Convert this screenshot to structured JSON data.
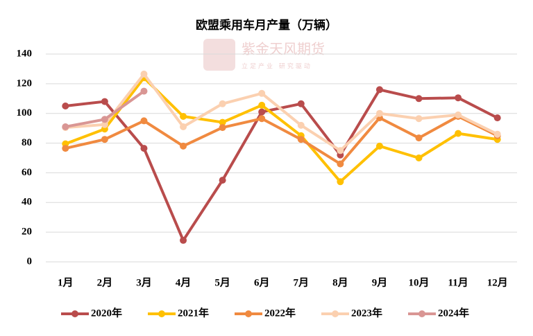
{
  "chart_data": {
    "type": "line",
    "title": "欧盟乘用车月产量（万辆）",
    "watermark": [
      "紫金天风期货",
      "立足产业 研究驱动"
    ],
    "categories": [
      "1月",
      "2月",
      "3月",
      "4月",
      "5月",
      "6月",
      "7月",
      "8月",
      "9月",
      "10月",
      "11月",
      "12月"
    ],
    "series": [
      {
        "name": "2020年",
        "color": "#b94c4c",
        "values": [
          105,
          108,
          76.5,
          14.5,
          55,
          101,
          106.5,
          72,
          116,
          110,
          110.5,
          97
        ]
      },
      {
        "name": "2021年",
        "color": "#ffc000",
        "values": [
          79.5,
          89.5,
          124,
          98,
          94,
          105.5,
          85,
          54,
          78,
          70,
          86.5,
          82.5
        ]
      },
      {
        "name": "2022年",
        "color": "#f08a40",
        "values": [
          76.5,
          82.5,
          95,
          78,
          90.5,
          96.5,
          82.5,
          66,
          97,
          83.5,
          98,
          85
        ]
      },
      {
        "name": "2023年",
        "color": "#fbd0b0",
        "values": [
          90.5,
          92.5,
          126.5,
          91,
          106.5,
          113.5,
          92,
          75,
          100,
          96.5,
          99,
          86
        ]
      },
      {
        "name": "2024年",
        "color": "#d99694",
        "values": [
          91,
          96,
          115,
          null,
          null,
          null,
          null,
          null,
          null,
          null,
          null,
          null
        ]
      }
    ],
    "ylim": [
      0,
      140
    ],
    "yticks": [
      0,
      20,
      40,
      60,
      80,
      100,
      120,
      140
    ],
    "grid": true
  }
}
